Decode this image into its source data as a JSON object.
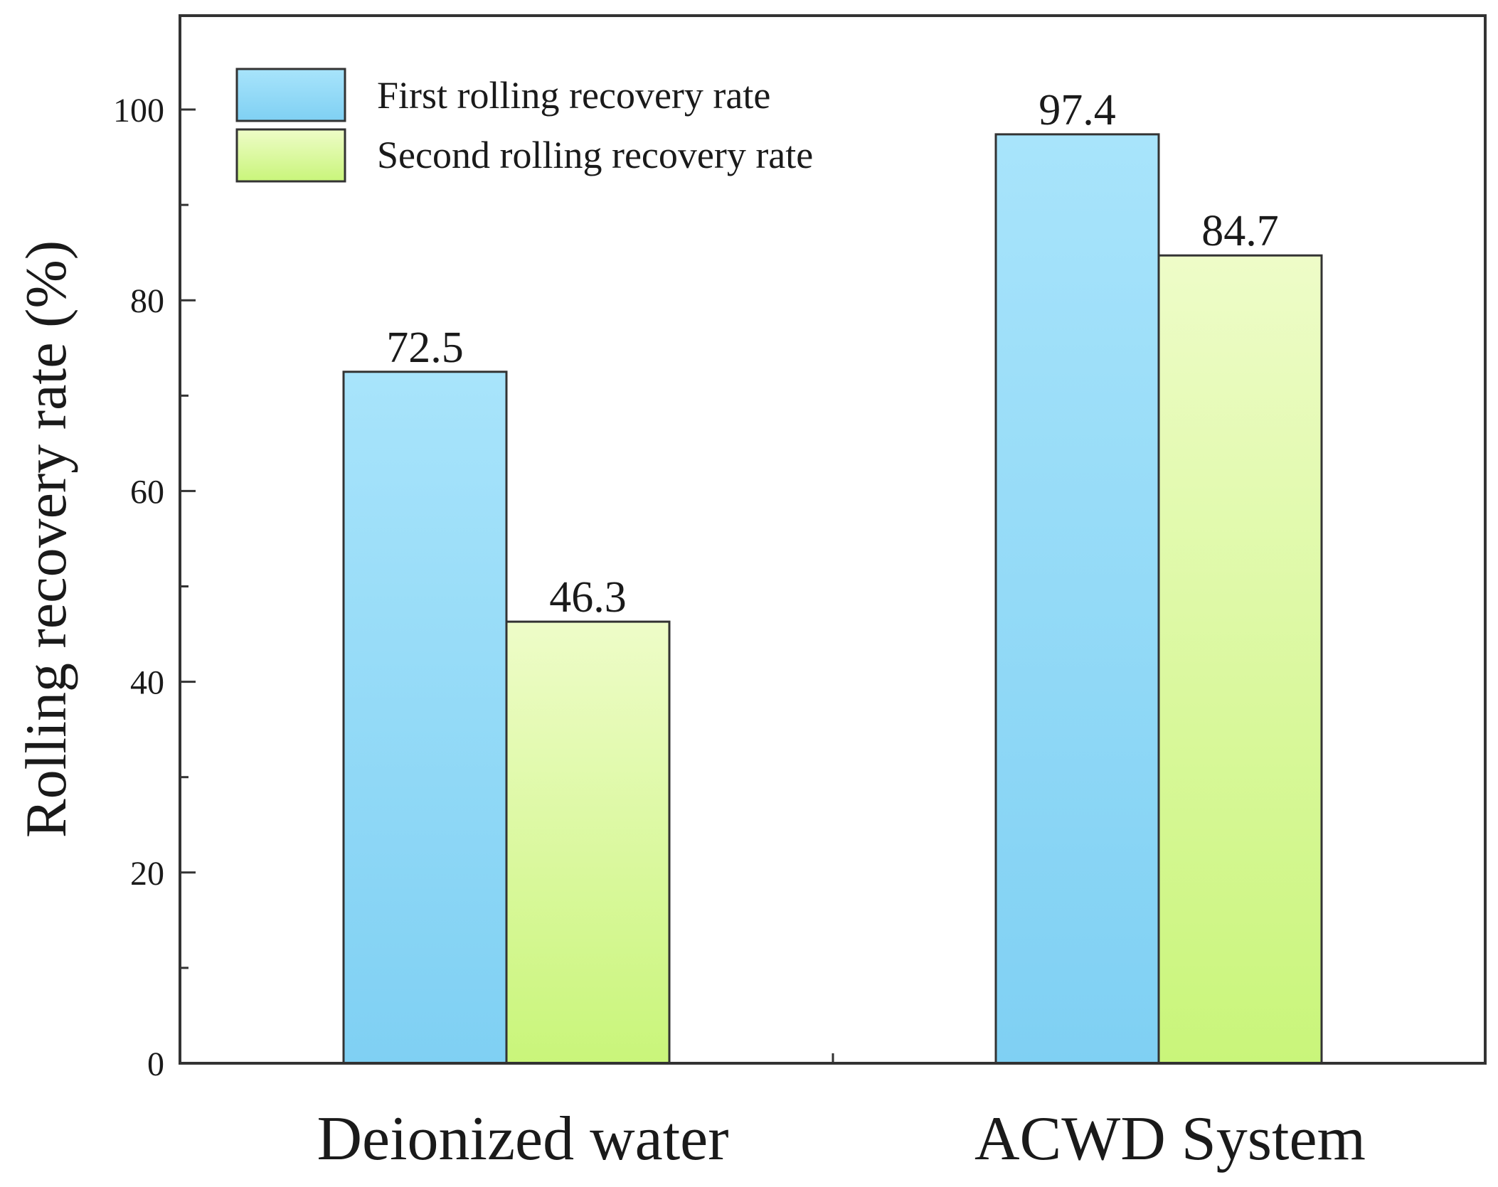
{
  "chart_data": {
    "type": "bar",
    "title": "",
    "xlabel": "",
    "ylabel": "Rolling recovery rate (%)",
    "ylim": [
      0,
      110
    ],
    "yticks": [
      0,
      20,
      40,
      60,
      80,
      100
    ],
    "categories": [
      "Deionized water",
      "ACWD System"
    ],
    "series": [
      {
        "name": "First rolling recovery rate",
        "values": [
          72.5,
          97.4
        ],
        "labels": [
          "72.5",
          "97.4"
        ],
        "color_top": "#a8e4fb",
        "color_bottom": "#7fd0f3"
      },
      {
        "name": "Second rolling recovery rate",
        "values": [
          46.3,
          84.7
        ],
        "labels": [
          "46.3",
          "84.7"
        ],
        "color_top": "#eefcc8",
        "color_bottom": "#c9f57a"
      }
    ],
    "legend_position": "top-left",
    "grid": false
  }
}
